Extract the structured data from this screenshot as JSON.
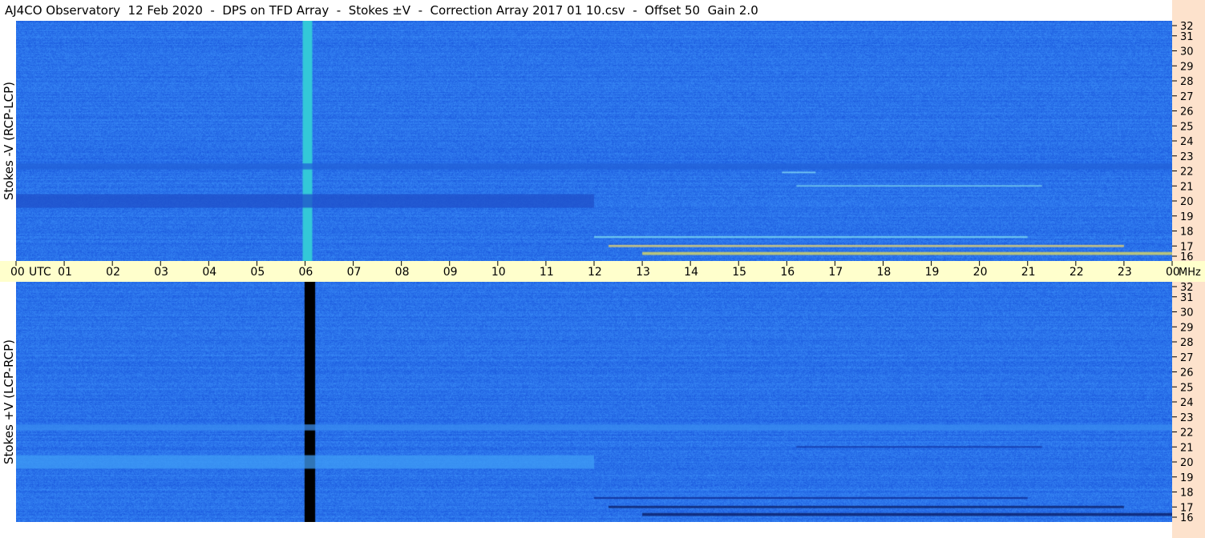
{
  "title": "AJ4CO Observatory  12 Feb 2020  -  DPS on TFD Array  -  Stokes ±V  -  Correction Array 2017 01 10.csv  -  Offset 50  Gain 2.0",
  "chart_data": [
    {
      "type": "heatmap",
      "panel": "top",
      "ylabel": "Stokes -V (RCP-LCP)",
      "xlabel": "UTC",
      "x_unit": "UTC",
      "y_unit": "MHz",
      "x_ticks": [
        "00",
        "01",
        "02",
        "03",
        "04",
        "05",
        "06",
        "07",
        "08",
        "09",
        "10",
        "11",
        "12",
        "13",
        "14",
        "15",
        "16",
        "17",
        "18",
        "19",
        "20",
        "21",
        "22",
        "23",
        "00"
      ],
      "y_ticks": [
        32,
        31,
        30,
        29,
        28,
        27,
        26,
        25,
        24,
        23,
        22,
        21,
        20,
        19,
        18,
        17,
        16
      ],
      "xlim": [
        0,
        24
      ],
      "ylim": [
        16,
        32
      ],
      "colormap": [
        "#000000",
        "#1a4fd8",
        "#2b7ff5",
        "#5fd2f0",
        "#f5e34a",
        "#ffffff"
      ],
      "background_level": "#2a72ea",
      "features": [
        {
          "kind": "vertical-band",
          "utc": 6.05,
          "width_h": 0.2,
          "color": "#33c8d8",
          "freq_range": [
            16,
            32
          ]
        },
        {
          "kind": "horizontal-band",
          "freq": 20.0,
          "width_mhz": 0.9,
          "color": "#1f4fc9",
          "utc_range": [
            0,
            12
          ]
        },
        {
          "kind": "horizontal-band",
          "freq": 22.3,
          "width_mhz": 0.4,
          "color": "#2260d8",
          "utc_range": [
            0,
            24
          ]
        },
        {
          "kind": "horizontal-band",
          "freq": 17.0,
          "width_mhz": 0.15,
          "color": "#f0d86a",
          "utc_range": [
            12.3,
            23
          ]
        },
        {
          "kind": "horizontal-band",
          "freq": 16.5,
          "width_mhz": 0.2,
          "color": "#e8e05a",
          "utc_range": [
            13,
            24
          ]
        },
        {
          "kind": "horizontal-band",
          "freq": 17.6,
          "width_mhz": 0.12,
          "color": "#7fdcf0",
          "utc_range": [
            12,
            21
          ]
        },
        {
          "kind": "horizontal-band",
          "freq": 21.9,
          "width_mhz": 0.1,
          "color": "#8ae0f5",
          "utc_range": [
            15.9,
            16.6
          ]
        },
        {
          "kind": "horizontal-band",
          "freq": 21.0,
          "width_mhz": 0.1,
          "color": "#7fd8f0",
          "utc_range": [
            16.2,
            21.3
          ]
        }
      ]
    },
    {
      "type": "heatmap",
      "panel": "bottom",
      "ylabel": "Stokes +V (LCP-RCP)",
      "xlabel": "UTC",
      "x_unit": "UTC",
      "y_unit": "MHz",
      "x_ticks": [
        "00",
        "01",
        "02",
        "03",
        "04",
        "05",
        "06",
        "07",
        "08",
        "09",
        "10",
        "11",
        "12",
        "13",
        "14",
        "15",
        "16",
        "17",
        "18",
        "19",
        "20",
        "21",
        "22",
        "23",
        "00"
      ],
      "y_ticks": [
        32,
        31,
        30,
        29,
        28,
        27,
        26,
        25,
        24,
        23,
        22,
        21,
        20,
        19,
        18,
        17,
        16
      ],
      "xlim": [
        0,
        24
      ],
      "ylim": [
        16,
        32
      ],
      "background_level": "#2a72ea",
      "features": [
        {
          "kind": "vertical-band",
          "utc": 6.1,
          "width_h": 0.22,
          "color": "#000000",
          "freq_range": [
            16,
            32
          ]
        },
        {
          "kind": "horizontal-band",
          "freq": 20.0,
          "width_mhz": 0.9,
          "color": "#3f9cf5",
          "utc_range": [
            0,
            12
          ]
        },
        {
          "kind": "horizontal-band",
          "freq": 22.3,
          "width_mhz": 0.4,
          "color": "#3a8cf0",
          "utc_range": [
            0,
            24
          ]
        },
        {
          "kind": "horizontal-band",
          "freq": 17.0,
          "width_mhz": 0.15,
          "color": "#0a1a60",
          "utc_range": [
            12.3,
            23
          ]
        },
        {
          "kind": "horizontal-band",
          "freq": 16.5,
          "width_mhz": 0.2,
          "color": "#0a1a60",
          "utc_range": [
            13,
            24
          ]
        },
        {
          "kind": "horizontal-band",
          "freq": 17.6,
          "width_mhz": 0.12,
          "color": "#0d2a90",
          "utc_range": [
            12,
            21
          ]
        },
        {
          "kind": "horizontal-band",
          "freq": 21.0,
          "width_mhz": 0.1,
          "color": "#1030a0",
          "utc_range": [
            16.2,
            21.3
          ]
        }
      ]
    }
  ]
}
